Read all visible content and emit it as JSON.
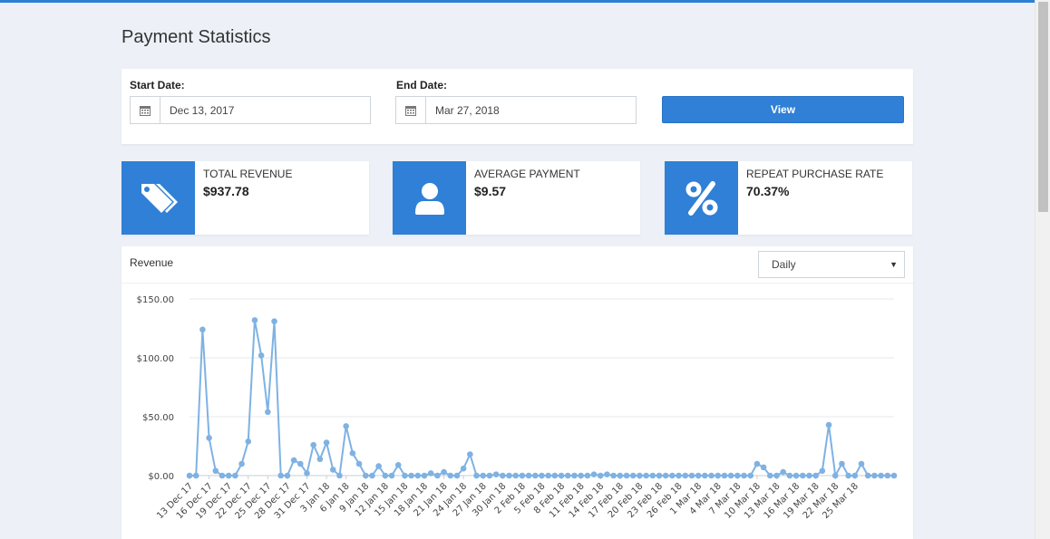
{
  "page": {
    "title": "Payment Statistics"
  },
  "filters": {
    "start_label": "Start Date:",
    "start_value": "Dec 13, 2017",
    "end_label": "End Date:",
    "end_value": "Mar 27, 2018",
    "view_label": "View"
  },
  "stats": [
    {
      "label": "TOTAL REVENUE",
      "value": "$937.78",
      "icon": "price-tags-icon"
    },
    {
      "label": "AVERAGE PAYMENT",
      "value": "$9.57",
      "icon": "user-icon"
    },
    {
      "label": "REPEAT PURCHASE RATE",
      "value": "70.37%",
      "icon": "percent-icon"
    }
  ],
  "chart": {
    "title": "Revenue",
    "period_value": "Daily"
  },
  "colors": {
    "accent": "#2f80d6",
    "line": "#7fb2e3"
  },
  "chart_data": {
    "type": "line",
    "ylim": [
      0,
      150
    ],
    "yticks": [
      "$0.00",
      "$50.00",
      "$100.00",
      "$150.00"
    ],
    "ytick_values": [
      0,
      50,
      100,
      150
    ],
    "grid": true,
    "xtick_labels": [
      "13 Dec 17",
      "16 Dec 17",
      "19 Dec 17",
      "22 Dec 17",
      "25 Dec 17",
      "28 Dec 17",
      "31 Dec 17",
      "3 Jan 18",
      "6 Jan 18",
      "9 Jan 18",
      "12 Jan 18",
      "15 Jan 18",
      "18 Jan 18",
      "21 Jan 18",
      "24 Jan 18",
      "27 Jan 18",
      "30 Jan 18",
      "2 Feb 18",
      "5 Feb 18",
      "8 Feb 18",
      "11 Feb 18",
      "14 Feb 18",
      "17 Feb 18",
      "20 Feb 18",
      "23 Feb 18",
      "26 Feb 18",
      "1 Mar 18",
      "4 Mar 18",
      "7 Mar 18",
      "10 Mar 18",
      "13 Mar 18",
      "16 Mar 18",
      "19 Mar 18",
      "22 Mar 18",
      "25 Mar 18"
    ],
    "x_start": "2017-12-13",
    "x_end": "2018-03-27",
    "values": [
      0,
      0,
      124,
      32,
      4,
      0,
      0,
      0,
      10,
      29,
      132,
      102,
      54,
      131,
      0,
      0,
      13,
      10,
      2,
      26,
      14,
      28,
      5,
      0,
      42,
      19,
      10,
      0,
      0,
      8,
      0,
      0,
      9,
      0,
      0,
      0,
      0,
      2,
      0,
      3,
      0,
      0,
      6,
      18,
      0,
      0,
      0,
      1,
      0,
      0,
      0,
      0,
      0,
      0,
      0,
      0,
      0,
      0,
      0,
      0,
      0,
      0,
      1,
      0,
      1,
      0,
      0,
      0,
      0,
      0,
      0,
      0,
      0,
      0,
      0,
      0,
      0,
      0,
      0,
      0,
      0,
      0,
      0,
      0,
      0,
      0,
      0,
      10,
      7,
      0,
      0,
      3,
      0,
      0,
      0,
      0,
      0,
      4,
      43,
      0,
      10,
      0,
      0,
      10,
      0,
      0,
      0,
      0,
      0
    ]
  }
}
